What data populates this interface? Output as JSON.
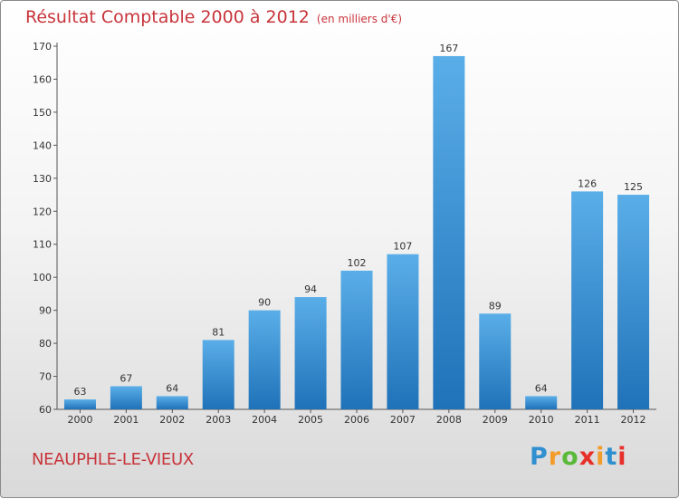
{
  "chart_data": {
    "type": "bar",
    "title": "Résultat Comptable 2000 à 2012",
    "subtitle": "(en milliers d'€)",
    "categories": [
      "2000",
      "2001",
      "2002",
      "2003",
      "2004",
      "2005",
      "2006",
      "2007",
      "2008",
      "2009",
      "2010",
      "2011",
      "2012"
    ],
    "values": [
      63,
      67,
      64,
      81,
      90,
      94,
      102,
      107,
      167,
      89,
      64,
      126,
      125
    ],
    "ylim": [
      60,
      170
    ],
    "yticks": [
      60,
      70,
      80,
      90,
      100,
      110,
      120,
      130,
      140,
      150,
      160,
      170
    ],
    "xlabel": "",
    "ylabel": "",
    "grid": false
  },
  "location": "NEAUPHLE-LE-VIEUX",
  "brand": {
    "letters": [
      "P",
      "r",
      "o",
      "x",
      "i",
      "t",
      "i"
    ],
    "colors": [
      "#2f8fd0",
      "#f39c2a",
      "#5bb93a",
      "#e7302a",
      "#f39c2a",
      "#2f8fd0",
      "#e7302a"
    ]
  },
  "colors": {
    "bar_light": "#5aaee8",
    "bar_dark": "#1f72b8",
    "title": "#c8343b",
    "axis": "#555555"
  }
}
